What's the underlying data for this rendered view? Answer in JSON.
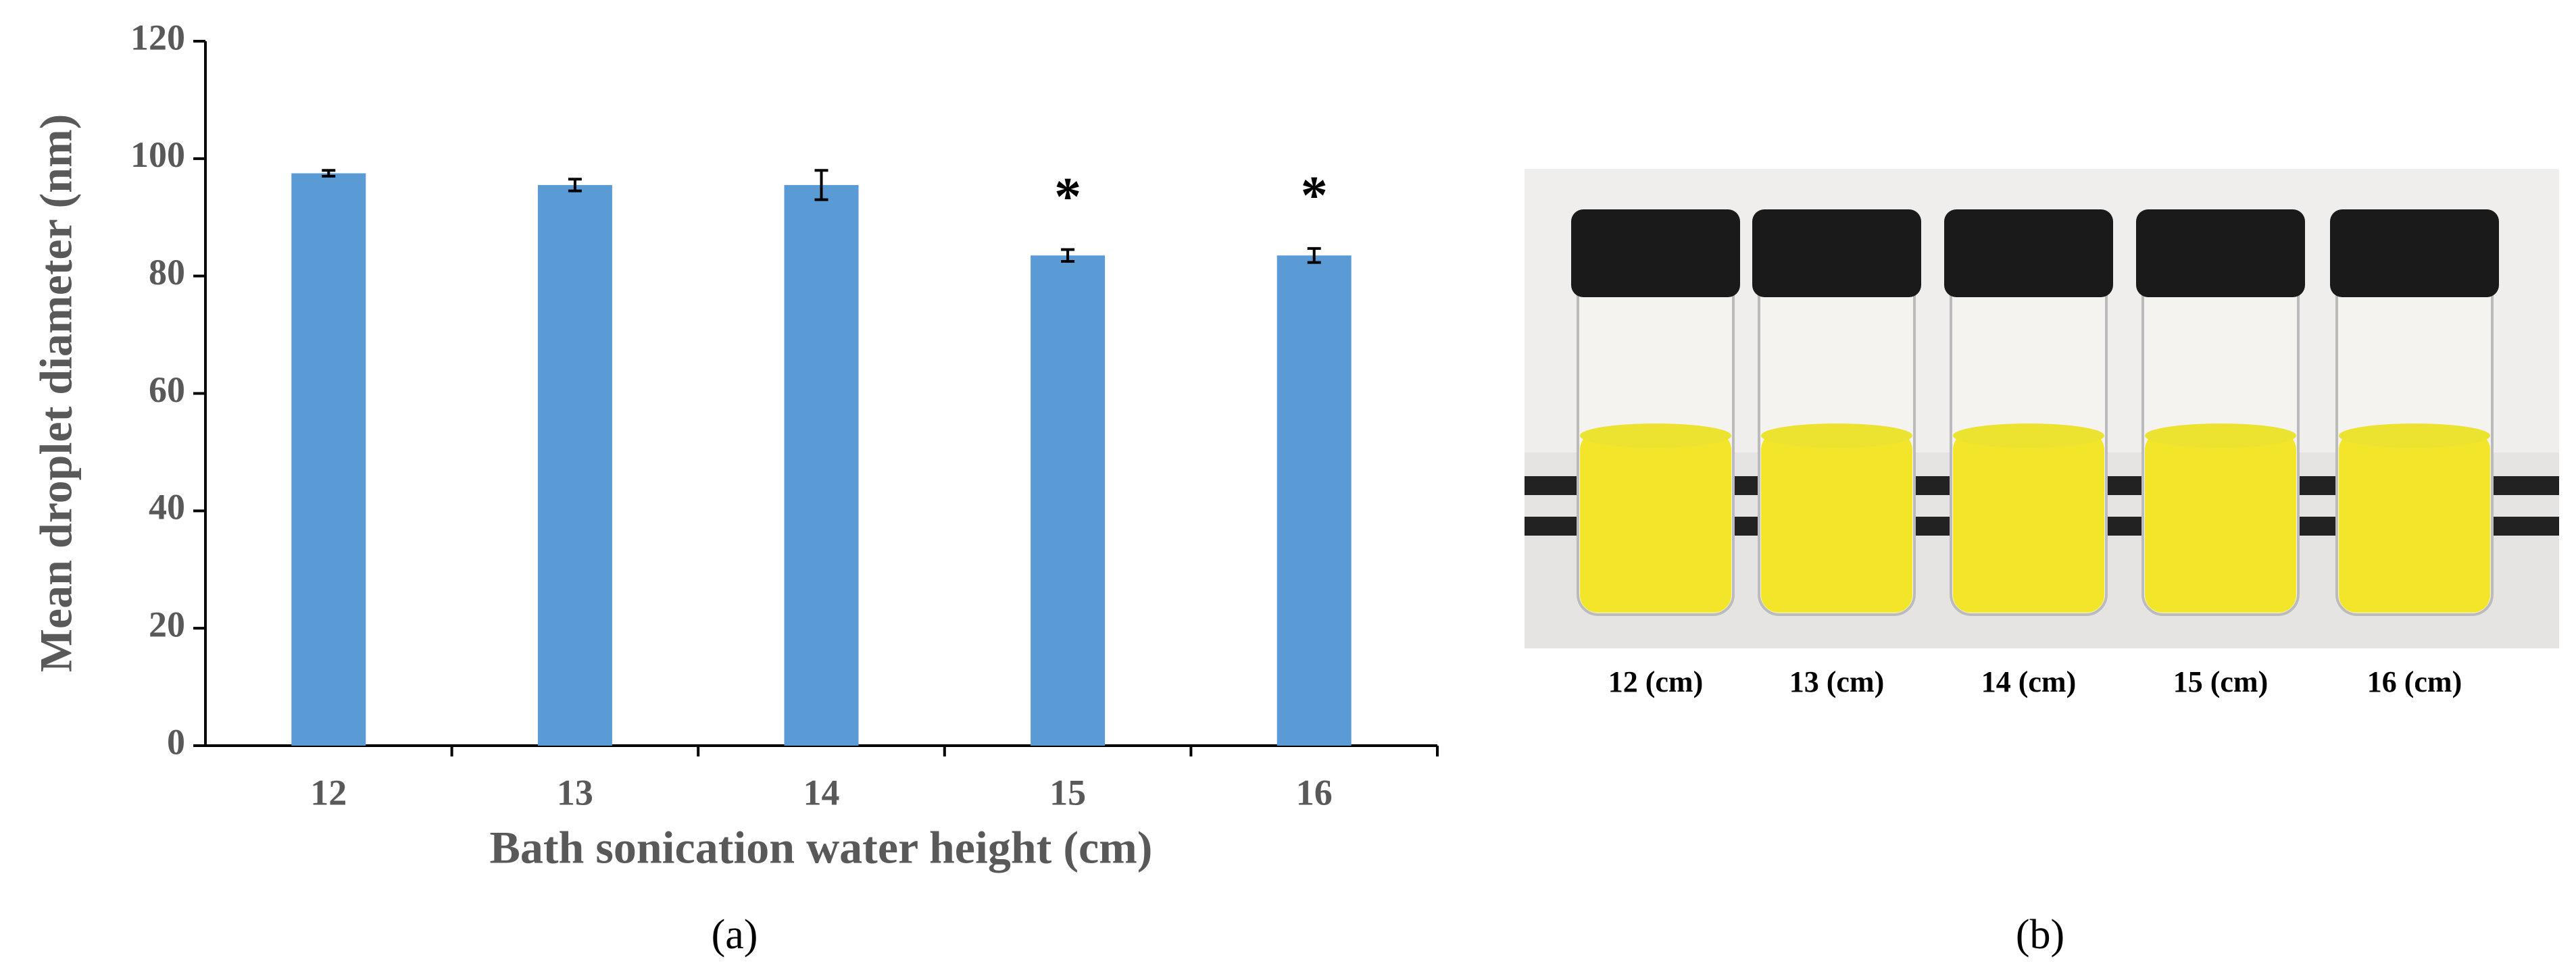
{
  "chart_data": {
    "type": "bar",
    "ylabel": "Mean droplet diameter (nm)",
    "xlabel": "Bath sonication water height (cm)",
    "categories": [
      "12",
      "13",
      "14",
      "15",
      "16"
    ],
    "values": [
      97.5,
      95.5,
      95.5,
      83.5,
      83.5
    ],
    "errors": [
      0.5,
      1,
      2.5,
      1,
      1.2
    ],
    "annotations": [
      null,
      null,
      null,
      "*",
      "*"
    ],
    "color": "#5b9bd5",
    "ylim": [
      0,
      120
    ],
    "yticks": [
      0,
      20,
      40,
      60,
      80,
      100,
      120
    ]
  },
  "panel_labels": [
    "(a)",
    "(b)"
  ],
  "photo": {
    "labels": [
      "12 (cm)",
      "13 (cm)",
      "14 (cm)",
      "15 (cm)",
      "16 (cm)"
    ]
  }
}
